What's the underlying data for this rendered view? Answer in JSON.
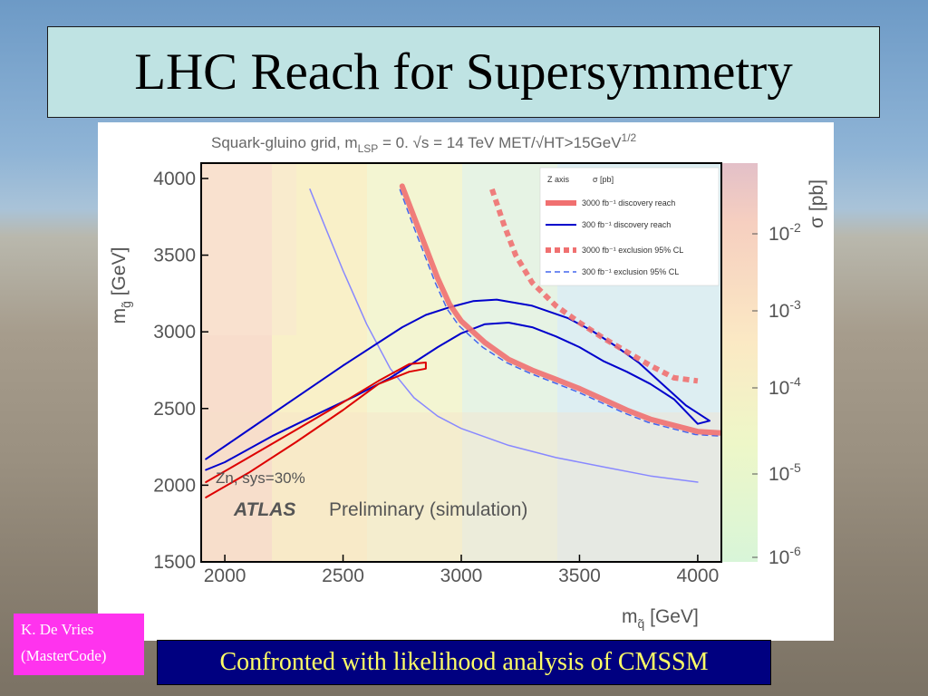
{
  "slide": {
    "title": "LHC Reach for Supersymmetry",
    "author_line1": "K. De Vries",
    "author_line2": "(MasterCode)",
    "caption": "Confronted with likelihood analysis of CMSSM"
  },
  "chart_data": {
    "type": "line",
    "title": "Squark-gluino grid, m_LSP = 0.   √s = 14 TeV   MET/√HT>15GeV^1/2",
    "title_parts": {
      "p1": "Squark-gluino grid, m",
      "p1_sub": "LSP",
      "p2": " = 0.   √s = 14 TeV   MET/√HT>15GeV",
      "p2_sup": "1/2"
    },
    "xlabel": "m_q̃ [GeV]",
    "xlabel_parts": {
      "main": "m",
      "sub": "q̃",
      "unit": " [GeV]"
    },
    "ylabel": "m_g̃ [GeV]",
    "ylabel_parts": {
      "main": "m",
      "sub": "g̃",
      "unit": " [GeV]"
    },
    "xlim": [
      1900,
      4100
    ],
    "ylim": [
      1500,
      4100
    ],
    "x_ticks": [
      2000,
      2500,
      3000,
      3500,
      4000
    ],
    "y_ticks": [
      1500,
      2000,
      2500,
      3000,
      3500,
      4000
    ],
    "zaxis": {
      "label": "σ [pb]",
      "log_scale": true,
      "tick_labels": [
        {
          "base": "10",
          "exp": "-2",
          "value": 0.01
        },
        {
          "base": "10",
          "exp": "-3",
          "value": 0.001
        },
        {
          "base": "10",
          "exp": "-4",
          "value": 0.0001
        },
        {
          "base": "10",
          "exp": "-5",
          "value": 1e-05
        },
        {
          "base": "10",
          "exp": "-6",
          "value": 1e-06
        }
      ]
    },
    "legend": {
      "placement": "top-right",
      "header_left": "Z axis",
      "header_right": "σ [pb]",
      "entries": [
        {
          "label": "3000 fb⁻¹ discovery reach",
          "color": "#f07070",
          "style": "thick-solid"
        },
        {
          "label": "300 fb⁻¹ discovery reach",
          "color": "#0000cc",
          "style": "solid"
        },
        {
          "label": "3000 fb⁻¹ exclusion 95% CL",
          "color": "#f07070",
          "style": "thick-dashed"
        },
        {
          "label": "300 fb⁻¹ exclusion 95% CL",
          "color": "#4466ee",
          "style": "dashed"
        }
      ]
    },
    "annotations": {
      "zn": "Zn, sys=30%",
      "atlas": "ATLAS",
      "preliminary": "Preliminary (simulation)"
    },
    "series": [
      {
        "name": "3000 fb⁻¹ discovery reach",
        "color": "#f07070",
        "style": "thick-solid",
        "x": [
          2750,
          2800,
          2850,
          2900,
          2950,
          3000,
          3100,
          3200,
          3300,
          3400,
          3500,
          3600,
          3700,
          3800,
          3900,
          4000,
          4100
        ],
        "y": [
          3950,
          3750,
          3550,
          3350,
          3180,
          3070,
          2930,
          2820,
          2750,
          2690,
          2630,
          2560,
          2490,
          2430,
          2390,
          2350,
          2340
        ]
      },
      {
        "name": "300 fb⁻¹ exclusion 95% CL",
        "color": "#4466ee",
        "style": "dashed",
        "x": [
          2740,
          2790,
          2840,
          2890,
          2940,
          2990,
          3090,
          3190,
          3290,
          3390,
          3490,
          3590,
          3690,
          3790,
          3890,
          3990,
          4100
        ],
        "y": [
          3930,
          3720,
          3520,
          3320,
          3150,
          3040,
          2900,
          2800,
          2730,
          2670,
          2610,
          2540,
          2470,
          2410,
          2370,
          2330,
          2320
        ]
      },
      {
        "name": "3000 fb⁻¹ exclusion 95% CL",
        "color": "#f07070",
        "style": "thick-dashed",
        "x": [
          3130,
          3180,
          3230,
          3300,
          3400,
          3500,
          3600,
          3700,
          3800,
          3900,
          4000
        ],
        "y": [
          3930,
          3700,
          3500,
          3320,
          3170,
          3060,
          2960,
          2870,
          2780,
          2700,
          2680
        ]
      },
      {
        "name": "300 fb⁻¹ discovery reach",
        "color": "#0000cc",
        "style": "solid",
        "x": [
          1920,
          2100,
          2300,
          2500,
          2650,
          2750,
          2850,
          2950,
          3050,
          3150,
          3300,
          3450,
          3550,
          3650,
          3750,
          3850,
          3950,
          4050,
          4000,
          3900,
          3800,
          3700,
          3600,
          3500,
          3400,
          3300,
          3200,
          3100,
          3000,
          2900,
          2800,
          2700,
          2550,
          2400,
          2200,
          2000,
          1920
        ],
        "y": [
          2170,
          2360,
          2570,
          2780,
          2930,
          3030,
          3110,
          3160,
          3200,
          3210,
          3170,
          3090,
          3010,
          2910,
          2800,
          2660,
          2520,
          2420,
          2400,
          2560,
          2660,
          2740,
          2810,
          2900,
          2970,
          3030,
          3060,
          3050,
          2990,
          2900,
          2800,
          2700,
          2580,
          2470,
          2320,
          2150,
          2100
        ]
      },
      {
        "name": "",
        "color": "#dd0000",
        "style": "solid",
        "x": [
          1920,
          2100,
          2300,
          2500,
          2650,
          2780,
          2850,
          2850,
          2780,
          2650,
          2500,
          2300,
          2100,
          1920
        ],
        "y": [
          2020,
          2180,
          2360,
          2540,
          2680,
          2790,
          2800,
          2760,
          2740,
          2660,
          2490,
          2280,
          2080,
          1920
        ]
      },
      {
        "name": "",
        "color": "#8888ff",
        "style": "thin",
        "x": [
          2360,
          2420,
          2500,
          2600,
          2700,
          2800,
          2900,
          3000,
          3200,
          3400,
          3600,
          3800,
          4000
        ],
        "y": [
          3930,
          3700,
          3400,
          3050,
          2760,
          2570,
          2450,
          2370,
          2260,
          2180,
          2120,
          2060,
          2020
        ]
      }
    ]
  }
}
